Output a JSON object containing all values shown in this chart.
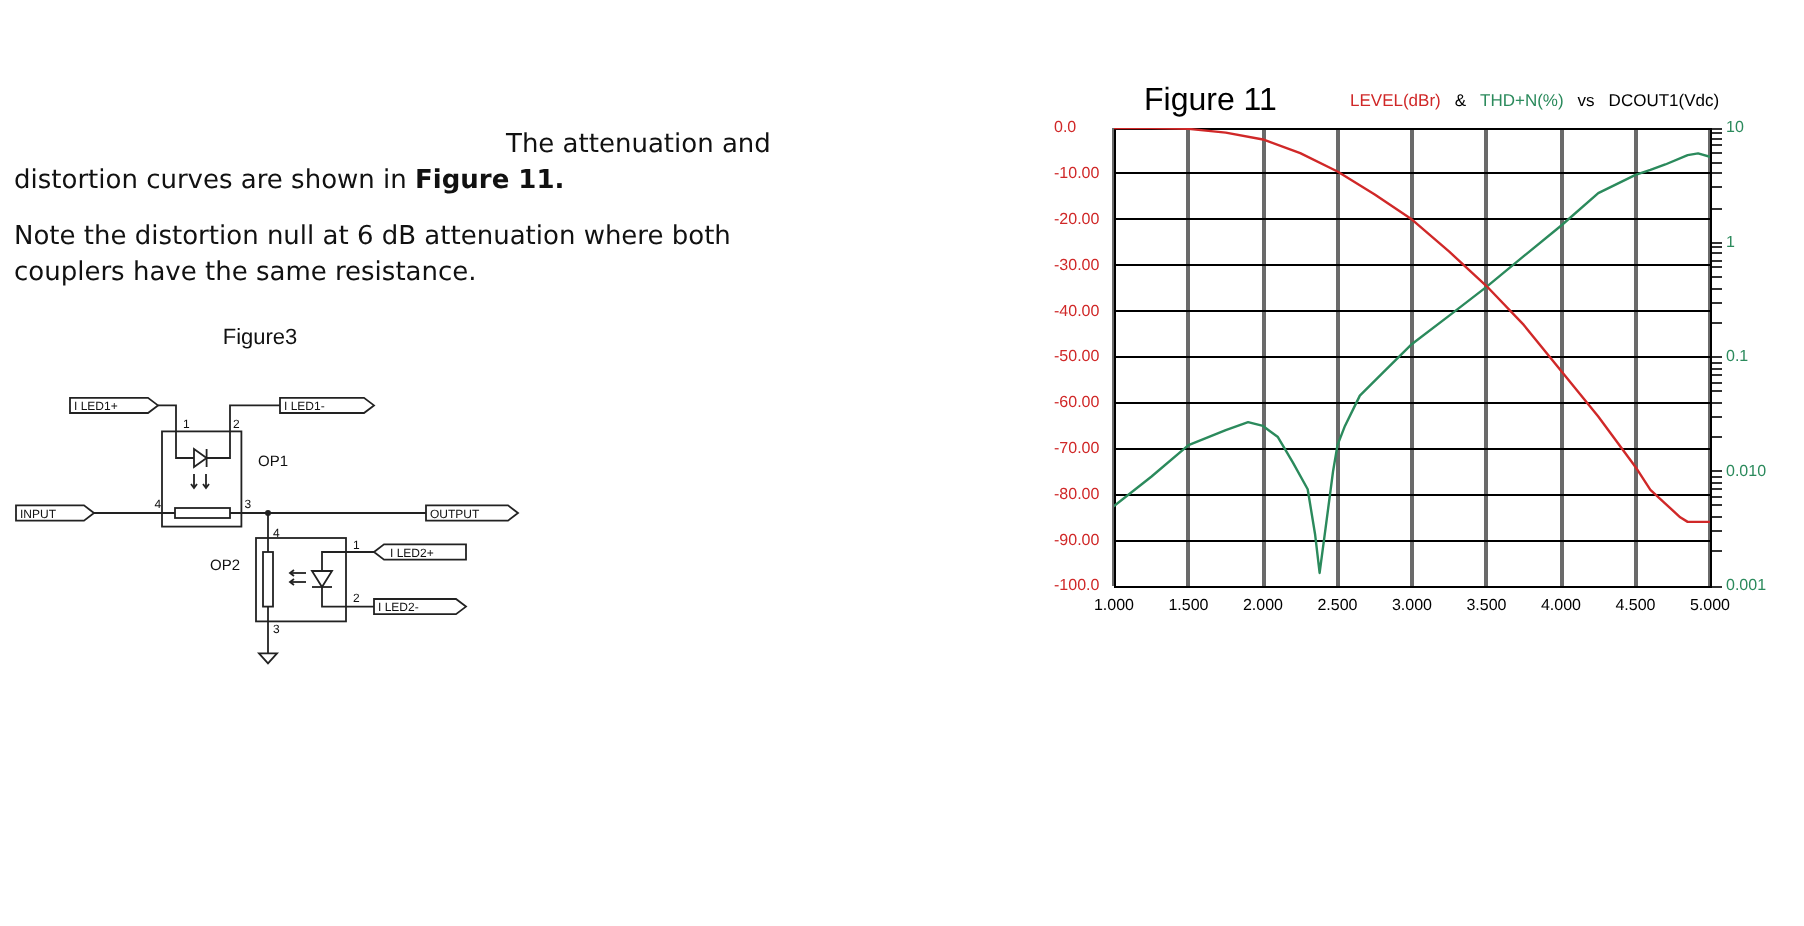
{
  "chart_data": {
    "type": "line",
    "title": "Figure 11",
    "xlabel": "DCOUT1(Vdc)",
    "annotations": [
      "&",
      "vs",
      "The attenuation and distortion curves are shown in",
      "Figure 11.",
      "Note the distortion null at 6 dB attenuation where both couplers have the same resistance.",
      "Figure3",
      "I LED1+",
      "I LED1-",
      "1",
      "2",
      "OP1",
      "INPUT",
      "4",
      "3",
      "OUTPUT",
      "4",
      "OP2",
      "1",
      "I LED2+",
      "2",
      "I LED2-",
      "3"
    ],
    "xlim": [
      1,
      5
    ],
    "xticks": [
      {
        "value": 1,
        "label": "1.000"
      },
      {
        "value": 1.5,
        "label": "1.500"
      },
      {
        "value": 2,
        "label": "2.000"
      },
      {
        "value": 2.5,
        "label": "2.500"
      },
      {
        "value": 3,
        "label": "3.000"
      },
      {
        "value": 3.5,
        "label": "3.500"
      },
      {
        "value": 4,
        "label": "4.000"
      },
      {
        "value": 4.5,
        "label": "4.500"
      },
      {
        "value": 5,
        "label": "5.000"
      }
    ],
    "ylim": [
      -100,
      0
    ],
    "yticks": [
      {
        "value": 0,
        "label": "0.0"
      },
      {
        "value": -10,
        "label": "-10.00"
      },
      {
        "value": -20,
        "label": "-20.00"
      },
      {
        "value": -30,
        "label": "-30.00"
      },
      {
        "value": -40,
        "label": "-40.00"
      },
      {
        "value": -50,
        "label": "-50.00"
      },
      {
        "value": -60,
        "label": "-60.00"
      },
      {
        "value": -70,
        "label": "-70.00"
      },
      {
        "value": -80,
        "label": "-80.00"
      },
      {
        "value": -90,
        "label": "-90.00"
      },
      {
        "value": -100,
        "label": "-100.0"
      }
    ],
    "y2lim": [
      0.001,
      10
    ],
    "y2ticks": [
      0.001,
      {
        "value": 0.002,
        "label": null
      },
      {
        "value": 0.003,
        "label": null
      },
      {
        "value": 0.004,
        "label": null
      },
      {
        "value": 0.005,
        "label": null
      },
      {
        "value": 0.006,
        "label": null
      },
      {
        "value": 0.007,
        "label": null
      },
      {
        "value": 0.008,
        "label": null
      },
      {
        "value": 0.009,
        "label": null
      },
      {
        "value": 0.01,
        "label": "0.010"
      },
      {
        "value": 0.02,
        "label": null
      },
      {
        "value": 0.03,
        "label": null
      },
      {
        "value": 0.04,
        "label": null
      },
      {
        "value": 0.05,
        "label": null
      },
      {
        "value": 0.06,
        "label": null
      },
      {
        "value": 0.07,
        "label": null
      },
      {
        "value": 0.08,
        "label": null
      },
      {
        "value": 0.09,
        "label": null
      },
      0.1,
      {
        "value": 0.2,
        "label": null
      },
      {
        "value": 0.3,
        "label": null
      },
      {
        "value": 0.4,
        "label": null
      },
      {
        "value": 0.5,
        "label": null
      },
      {
        "value": 0.6,
        "label": null
      },
      {
        "value": 0.7,
        "label": null
      },
      {
        "value": 0.8,
        "label": null
      },
      {
        "value": 0.9,
        "label": null
      },
      1,
      {
        "value": 2,
        "label": null
      },
      {
        "value": 3,
        "label": null
      },
      {
        "value": 4,
        "label": null
      },
      {
        "value": 5,
        "label": null
      },
      {
        "value": 6,
        "label": null
      },
      {
        "value": 7,
        "label": null
      },
      {
        "value": 8,
        "label": null
      },
      {
        "value": 9,
        "label": null
      },
      10
    ],
    "log": "y2",
    "grid": true,
    "legend": "top",
    "marker": "none",
    "line_style": "solid",
    "series": [
      {
        "name": "LEVEL(dBr)",
        "color": "#d02828",
        "axis": "y",
        "x": [
          1,
          1.25,
          1.5,
          1.75,
          2,
          2.25,
          2.5,
          2.75,
          3,
          3.25,
          3.5,
          3.75,
          4,
          4.25,
          4.5,
          4.6,
          4.7,
          4.8,
          4.85,
          5
        ],
        "values": [
          0,
          0,
          -0.2,
          -1,
          -2.5,
          -5.5,
          -9.5,
          -14.5,
          -20,
          -27,
          -34.5,
          -43,
          -53,
          -63,
          -74,
          -79,
          -82,
          -85,
          -86,
          -86
        ]
      },
      {
        "name": "THD+N(%)",
        "color": "#2b8a5c",
        "axis": "y2",
        "x": [
          1,
          1.25,
          1.5,
          1.75,
          1.9,
          2,
          2.1,
          2.2,
          2.3,
          2.35,
          2.38,
          2.42,
          2.47,
          2.5,
          2.55,
          2.65,
          2.8,
          3,
          3.25,
          3.5,
          3.75,
          4,
          4.25,
          4.5,
          4.6,
          4.7,
          4.85,
          4.92,
          5
        ],
        "values": [
          0.005,
          0.009,
          0.017,
          0.023,
          0.027,
          0.025,
          0.02,
          0.012,
          0.007,
          0.0028,
          0.0013,
          0.0032,
          0.01,
          0.017,
          0.025,
          0.046,
          0.072,
          0.13,
          0.23,
          0.41,
          0.76,
          1.4,
          2.7,
          3.9,
          4.3,
          4.8,
          5.8,
          6,
          5.6
        ]
      }
    ]
  }
}
